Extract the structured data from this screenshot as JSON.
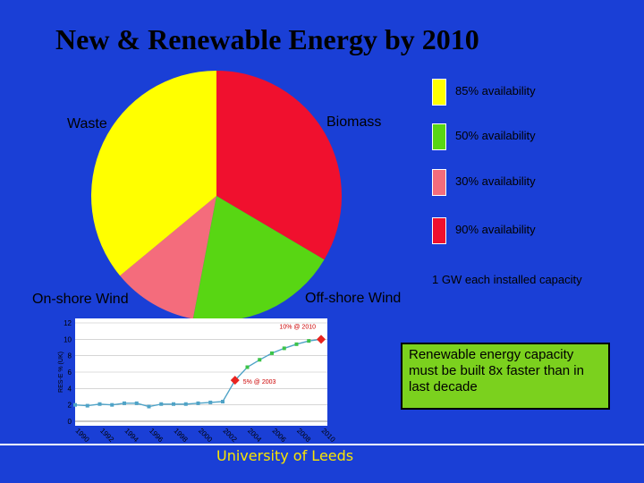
{
  "title": "New & Renewable Energy by 2010",
  "colors": {
    "background": "#1a3fd6",
    "yellow": "#ffff00",
    "red": "#f0102e",
    "green": "#58d613",
    "pink": "#f46c7c",
    "callout": "#7bd11e",
    "footer_text": "#fbe600"
  },
  "chart_data": [
    {
      "type": "pie",
      "slices": [
        {
          "label": "Biomass",
          "value": 33.5,
          "color": "#f0102e"
        },
        {
          "label": "Off-shore Wind",
          "value": 19.5,
          "color": "#58d613"
        },
        {
          "label": "On-shore Wind",
          "value": 11,
          "color": "#f46c7c"
        },
        {
          "label": "Waste",
          "value": 36,
          "color": "#ffff00"
        }
      ],
      "legend": [
        {
          "label": "85% availability",
          "color": "#ffff00"
        },
        {
          "label": "50% availability",
          "color": "#58d613"
        },
        {
          "label": "30% availability",
          "color": "#f46c7c"
        },
        {
          "label": "90% availability",
          "color": "#f0102e"
        }
      ],
      "legend_note": "1 GW each installed capacity",
      "legend_position": "right"
    },
    {
      "type": "line",
      "ylabel": "RES-E % (UK)",
      "ylim": [
        0,
        12
      ],
      "yticks": [
        0,
        2,
        4,
        6,
        8,
        10,
        12
      ],
      "xticks": [
        "1990",
        "1992",
        "1994",
        "1996",
        "1998",
        "2000",
        "2002",
        "2004",
        "2006",
        "2008",
        "2010"
      ],
      "x": [
        1990,
        1991,
        1992,
        1993,
        1994,
        1995,
        1996,
        1997,
        1998,
        1999,
        2000,
        2001,
        2002,
        2003,
        2004,
        2005,
        2006,
        2007,
        2008,
        2009,
        2010
      ],
      "values": [
        2.0,
        1.9,
        2.1,
        2.0,
        2.2,
        2.2,
        1.8,
        2.1,
        2.1,
        2.1,
        2.2,
        2.3,
        2.4,
        5.0,
        6.6,
        7.5,
        8.3,
        8.9,
        9.4,
        9.8,
        10.0
      ],
      "annotations": [
        {
          "x": 2003,
          "y": 5,
          "text": "5% @ 2003"
        },
        {
          "x": 2010,
          "y": 10,
          "text": "10% @ 2010"
        }
      ],
      "grid": true
    }
  ],
  "callout": "Renewable energy capacity must be built 8x faster than in last decade",
  "footer": "University of Leeds"
}
